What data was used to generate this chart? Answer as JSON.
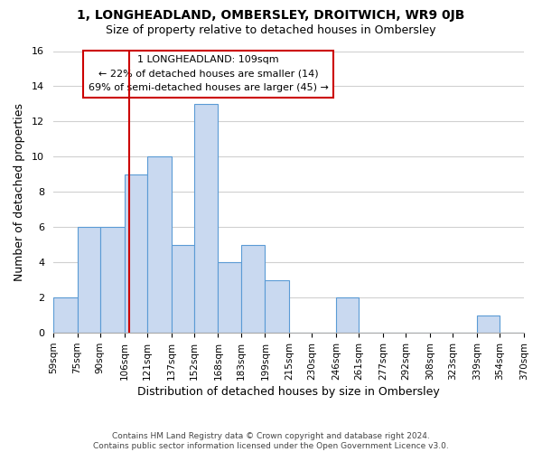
{
  "title": "1, LONGHEADLAND, OMBERSLEY, DROITWICH, WR9 0JB",
  "subtitle": "Size of property relative to detached houses in Ombersley",
  "xlabel": "Distribution of detached houses by size in Ombersley",
  "ylabel": "Number of detached properties",
  "bin_edges": [
    59,
    75,
    90,
    106,
    121,
    137,
    152,
    168,
    183,
    199,
    215,
    230,
    246,
    261,
    277,
    292,
    308,
    323,
    339,
    354,
    370
  ],
  "bin_labels": [
    "59sqm",
    "75sqm",
    "90sqm",
    "106sqm",
    "121sqm",
    "137sqm",
    "152sqm",
    "168sqm",
    "183sqm",
    "199sqm",
    "215sqm",
    "230sqm",
    "246sqm",
    "261sqm",
    "277sqm",
    "292sqm",
    "308sqm",
    "323sqm",
    "339sqm",
    "354sqm",
    "370sqm"
  ],
  "counts": [
    2,
    6,
    6,
    9,
    10,
    5,
    13,
    4,
    5,
    3,
    0,
    0,
    2,
    0,
    0,
    0,
    0,
    0,
    1,
    0
  ],
  "bar_color": "#c9d9f0",
  "bar_edge_color": "#5b9bd5",
  "vline_x": 109,
  "vline_color": "#cc0000",
  "annotation_lines": [
    "1 LONGHEADLAND: 109sqm",
    "← 22% of detached houses are smaller (14)",
    "69% of semi-detached houses are larger (45) →"
  ],
  "annotation_box_edge_color": "#cc0000",
  "ylim": [
    0,
    16
  ],
  "yticks": [
    0,
    2,
    4,
    6,
    8,
    10,
    12,
    14,
    16
  ],
  "footer_lines": [
    "Contains HM Land Registry data © Crown copyright and database right 2024.",
    "Contains public sector information licensed under the Open Government Licence v3.0."
  ],
  "background_color": "#ffffff",
  "grid_color": "#d0d0d0"
}
